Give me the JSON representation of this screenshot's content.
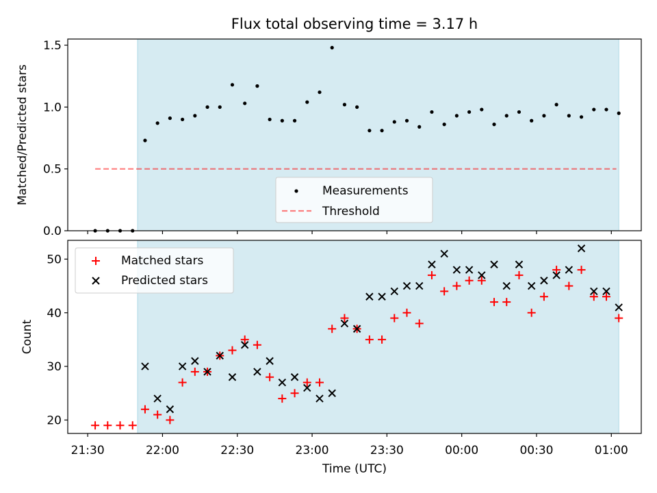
{
  "title": "Flux total observing time = 3.17 h",
  "xlabel": "Time (UTC)",
  "x_tick_labels": [
    "21:30",
    "22:00",
    "22:30",
    "23:00",
    "23:30",
    "00:00",
    "00:30",
    "01:00"
  ],
  "colors": {
    "shade": "#add8e6",
    "measurements": "#000000",
    "threshold": "#ff0000",
    "matched": "#ff0000",
    "predicted": "#000000"
  },
  "chart_data": [
    {
      "type": "scatter",
      "ylabel": "Matched/Predicted stars",
      "ylim": [
        0,
        1.55
      ],
      "y_tick_labels": [
        "0.0",
        "0.5",
        "1.0",
        "1.5"
      ],
      "xlim": [
        "21:22",
        "01:12"
      ],
      "shaded_span": [
        "21:50",
        "01:03"
      ],
      "legend": {
        "placement": "lower-center",
        "entries": [
          "Measurements",
          "Threshold"
        ]
      },
      "threshold": {
        "name": "Threshold",
        "y": 0.5,
        "x_range": [
          "21:33",
          "01:02"
        ]
      },
      "series": [
        {
          "name": "Measurements",
          "points": [
            [
              "21:33",
              0.0
            ],
            [
              "21:38",
              0.0
            ],
            [
              "21:43",
              0.0
            ],
            [
              "21:48",
              0.0
            ],
            [
              "21:53",
              0.73
            ],
            [
              "21:58",
              0.87
            ],
            [
              "22:03",
              0.91
            ],
            [
              "22:08",
              0.9
            ],
            [
              "22:13",
              0.93
            ],
            [
              "22:18",
              1.0
            ],
            [
              "22:23",
              1.0
            ],
            [
              "22:28",
              1.18
            ],
            [
              "22:33",
              1.03
            ],
            [
              "22:38",
              1.17
            ],
            [
              "22:43",
              0.9
            ],
            [
              "22:48",
              0.89
            ],
            [
              "22:53",
              0.89
            ],
            [
              "22:58",
              1.04
            ],
            [
              "23:03",
              1.12
            ],
            [
              "23:08",
              1.48
            ],
            [
              "23:13",
              1.02
            ],
            [
              "23:18",
              1.0
            ],
            [
              "23:23",
              0.81
            ],
            [
              "23:28",
              0.81
            ],
            [
              "23:33",
              0.88
            ],
            [
              "23:38",
              0.89
            ],
            [
              "23:43",
              0.84
            ],
            [
              "23:48",
              0.96
            ],
            [
              "23:53",
              0.86
            ],
            [
              "23:58",
              0.93
            ],
            [
              "00:03",
              0.96
            ],
            [
              "00:08",
              0.98
            ],
            [
              "00:13",
              0.86
            ],
            [
              "00:18",
              0.93
            ],
            [
              "00:23",
              0.96
            ],
            [
              "00:28",
              0.89
            ],
            [
              "00:33",
              0.93
            ],
            [
              "00:38",
              1.02
            ],
            [
              "00:43",
              0.93
            ],
            [
              "00:48",
              0.92
            ],
            [
              "00:53",
              0.98
            ],
            [
              "00:58",
              0.98
            ],
            [
              "01:03",
              0.95
            ]
          ]
        }
      ]
    },
    {
      "type": "scatter",
      "ylabel": "Count",
      "ylim": [
        17.5,
        53.5
      ],
      "y_tick_labels": [
        "20",
        "30",
        "40",
        "50"
      ],
      "xlim": [
        "21:22",
        "01:12"
      ],
      "shaded_span": [
        "21:50",
        "01:03"
      ],
      "legend": {
        "placement": "top-left",
        "entries": [
          "Matched stars",
          "Predicted stars"
        ]
      },
      "series": [
        {
          "name": "Matched stars",
          "marker": "+",
          "points": [
            [
              "21:33",
              19
            ],
            [
              "21:38",
              19
            ],
            [
              "21:43",
              19
            ],
            [
              "21:48",
              19
            ],
            [
              "21:53",
              22
            ],
            [
              "21:58",
              21
            ],
            [
              "22:03",
              20
            ],
            [
              "22:08",
              27
            ],
            [
              "22:13",
              29
            ],
            [
              "22:18",
              29
            ],
            [
              "22:23",
              32
            ],
            [
              "22:28",
              33
            ],
            [
              "22:33",
              35
            ],
            [
              "22:38",
              34
            ],
            [
              "22:43",
              28
            ],
            [
              "22:48",
              24
            ],
            [
              "22:53",
              25
            ],
            [
              "22:58",
              27
            ],
            [
              "23:03",
              27
            ],
            [
              "23:08",
              37
            ],
            [
              "23:13",
              39
            ],
            [
              "23:18",
              37
            ],
            [
              "23:23",
              35
            ],
            [
              "23:28",
              35
            ],
            [
              "23:33",
              39
            ],
            [
              "23:38",
              40
            ],
            [
              "23:43",
              38
            ],
            [
              "23:48",
              47
            ],
            [
              "23:53",
              44
            ],
            [
              "23:58",
              45
            ],
            [
              "00:03",
              46
            ],
            [
              "00:08",
              46
            ],
            [
              "00:13",
              42
            ],
            [
              "00:18",
              42
            ],
            [
              "00:23",
              47
            ],
            [
              "00:28",
              40
            ],
            [
              "00:33",
              43
            ],
            [
              "00:38",
              48
            ],
            [
              "00:43",
              45
            ],
            [
              "00:48",
              48
            ],
            [
              "00:53",
              43
            ],
            [
              "00:58",
              43
            ],
            [
              "01:03",
              39
            ]
          ]
        },
        {
          "name": "Predicted stars",
          "marker": "x",
          "points": [
            [
              "21:53",
              30
            ],
            [
              "21:58",
              24
            ],
            [
              "22:03",
              22
            ],
            [
              "22:08",
              30
            ],
            [
              "22:13",
              31
            ],
            [
              "22:18",
              29
            ],
            [
              "22:23",
              32
            ],
            [
              "22:28",
              28
            ],
            [
              "22:33",
              34
            ],
            [
              "22:38",
              29
            ],
            [
              "22:43",
              31
            ],
            [
              "22:48",
              27
            ],
            [
              "22:53",
              28
            ],
            [
              "22:58",
              26
            ],
            [
              "23:03",
              24
            ],
            [
              "23:08",
              25
            ],
            [
              "23:13",
              38
            ],
            [
              "23:18",
              37
            ],
            [
              "23:23",
              43
            ],
            [
              "23:28",
              43
            ],
            [
              "23:33",
              44
            ],
            [
              "23:38",
              45
            ],
            [
              "23:43",
              45
            ],
            [
              "23:48",
              49
            ],
            [
              "23:53",
              51
            ],
            [
              "23:58",
              48
            ],
            [
              "00:03",
              48
            ],
            [
              "00:08",
              47
            ],
            [
              "00:13",
              49
            ],
            [
              "00:18",
              45
            ],
            [
              "00:23",
              49
            ],
            [
              "00:28",
              45
            ],
            [
              "00:33",
              46
            ],
            [
              "00:38",
              47
            ],
            [
              "00:43",
              48
            ],
            [
              "00:48",
              52
            ],
            [
              "00:53",
              44
            ],
            [
              "00:58",
              44
            ],
            [
              "01:03",
              41
            ]
          ]
        }
      ]
    }
  ]
}
